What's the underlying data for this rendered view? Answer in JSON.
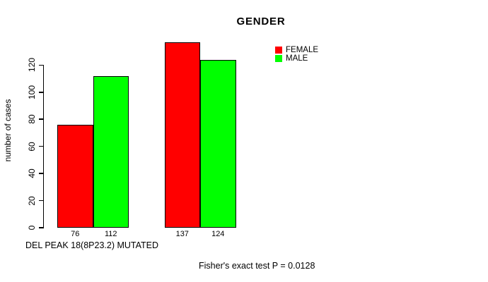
{
  "chart_data": {
    "type": "bar",
    "title": "GENDER",
    "ylabel": "number of cases",
    "xlabel": "DEL PEAK 18(8P23.2) MUTATED",
    "annotation": "Fisher's exact test P = 0.0128",
    "series": [
      {
        "name": "FEMALE",
        "color": "#ff0000",
        "values": [
          76,
          137
        ]
      },
      {
        "name": "MALE",
        "color": "#00ff00",
        "values": [
          112,
          124
        ]
      }
    ],
    "bar_value_labels": [
      "76",
      "112",
      "137",
      "124"
    ],
    "yticks": [
      0,
      20,
      40,
      60,
      80,
      100,
      120
    ],
    "ylim": [
      0,
      140
    ],
    "grid": false,
    "legend_position": "top-right",
    "bar_border_color": "#000000",
    "axis_color": "#000000",
    "background": "#ffffff"
  }
}
